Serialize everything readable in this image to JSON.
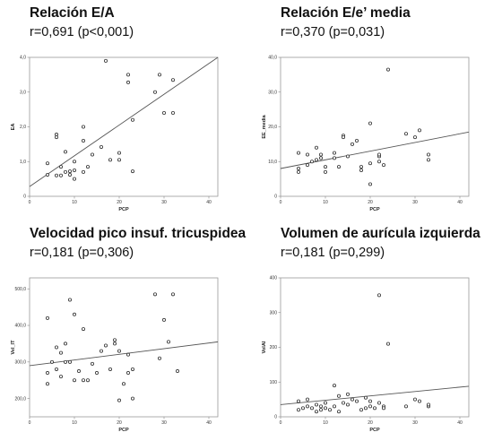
{
  "chart_data": [
    {
      "type": "scatter",
      "title": "Relación E/A",
      "subtitle": "r=0,691 (p<0,001)",
      "xlabel": "PCP",
      "ylabel": "EA",
      "xlim": [
        0,
        42
      ],
      "ylim": [
        0,
        4.0
      ],
      "xticks": [
        "0",
        "10",
        "20",
        "30",
        "40"
      ],
      "yticks": [
        "0",
        "1,0",
        "2,0",
        "3,0",
        "4,0"
      ],
      "points": [
        [
          4,
          0.95
        ],
        [
          4,
          0.62
        ],
        [
          6,
          0.6
        ],
        [
          6,
          1.7
        ],
        [
          6,
          1.78
        ],
        [
          7,
          0.85
        ],
        [
          7,
          0.6
        ],
        [
          8,
          0.7
        ],
        [
          8,
          1.28
        ],
        [
          9,
          0.72
        ],
        [
          9,
          0.62
        ],
        [
          10,
          0.5
        ],
        [
          10,
          1.0
        ],
        [
          10,
          0.75
        ],
        [
          12,
          0.7
        ],
        [
          12,
          2.0
        ],
        [
          12,
          1.6
        ],
        [
          13,
          0.85
        ],
        [
          14,
          1.2
        ],
        [
          16,
          1.42
        ],
        [
          17,
          3.9
        ],
        [
          18,
          1.05
        ],
        [
          20,
          1.05
        ],
        [
          20,
          1.25
        ],
        [
          22,
          3.5
        ],
        [
          22,
          3.28
        ],
        [
          23,
          2.2
        ],
        [
          23,
          0.72
        ],
        [
          28,
          3.0
        ],
        [
          29,
          3.5
        ],
        [
          30,
          2.4
        ],
        [
          32,
          3.35
        ],
        [
          32,
          2.4
        ]
      ],
      "fit": [
        [
          0,
          0.28
        ],
        [
          42,
          4.0
        ]
      ]
    },
    {
      "type": "scatter",
      "title": "Relación E/e’ media",
      "subtitle": "r=0,370 (p=0,031)",
      "xlabel": "PCP",
      "ylabel": "EE_media",
      "xlim": [
        0,
        42
      ],
      "ylim": [
        0,
        40
      ],
      "xticks": [
        "0",
        "10",
        "20",
        "30",
        "40"
      ],
      "yticks": [
        "0",
        "10,0",
        "20,0",
        "30,0",
        "40,0"
      ],
      "points": [
        [
          4,
          12.5
        ],
        [
          4,
          8.0
        ],
        [
          4,
          7.0
        ],
        [
          6,
          12.0
        ],
        [
          6,
          9.0
        ],
        [
          7,
          10.0
        ],
        [
          8,
          10.5
        ],
        [
          8,
          14.0
        ],
        [
          9,
          11.0
        ],
        [
          9,
          12.0
        ],
        [
          10,
          8.5
        ],
        [
          10,
          7.0
        ],
        [
          12,
          11.0
        ],
        [
          12,
          12.5
        ],
        [
          13,
          8.5
        ],
        [
          14,
          17.5
        ],
        [
          14,
          17.0
        ],
        [
          15,
          11.5
        ],
        [
          16,
          15.0
        ],
        [
          17,
          16.0
        ],
        [
          18,
          7.5
        ],
        [
          18,
          8.5
        ],
        [
          20,
          3.5
        ],
        [
          20,
          21.0
        ],
        [
          20,
          9.5
        ],
        [
          22,
          11.5
        ],
        [
          22,
          12.0
        ],
        [
          22,
          10.0
        ],
        [
          23,
          9.0
        ],
        [
          24,
          36.5
        ],
        [
          28,
          18.0
        ],
        [
          30,
          17.0
        ],
        [
          31,
          19.0
        ],
        [
          33,
          12.0
        ],
        [
          33,
          10.5
        ]
      ],
      "fit": [
        [
          0,
          8.0
        ],
        [
          42,
          18.5
        ]
      ]
    },
    {
      "type": "scatter",
      "title": "Velocidad pico insuf. tricuspidea",
      "subtitle": "r=0,181 (p=0,306)",
      "xlabel": "PCP",
      "ylabel": "Vel_IT",
      "xlim": [
        0,
        42
      ],
      "ylim": [
        150,
        530
      ],
      "xticks": [
        "0",
        "10",
        "20",
        "30",
        "40"
      ],
      "yticks": [
        "200,0",
        "300,0",
        "400,0",
        "500,0"
      ],
      "points": [
        [
          4,
          420
        ],
        [
          4,
          270
        ],
        [
          4,
          240
        ],
        [
          5,
          300
        ],
        [
          6,
          340
        ],
        [
          6,
          280
        ],
        [
          7,
          260
        ],
        [
          7,
          325
        ],
        [
          8,
          350
        ],
        [
          8,
          300
        ],
        [
          9,
          470
        ],
        [
          9,
          300
        ],
        [
          10,
          430
        ],
        [
          10,
          250
        ],
        [
          11,
          275
        ],
        [
          12,
          390
        ],
        [
          12,
          250
        ],
        [
          13,
          250
        ],
        [
          14,
          295
        ],
        [
          15,
          270
        ],
        [
          16,
          330
        ],
        [
          17,
          345
        ],
        [
          18,
          280
        ],
        [
          19,
          360
        ],
        [
          19,
          350
        ],
        [
          20,
          330
        ],
        [
          20,
          195
        ],
        [
          21,
          240
        ],
        [
          22,
          320
        ],
        [
          22,
          270
        ],
        [
          23,
          280
        ],
        [
          23,
          200
        ],
        [
          28,
          485
        ],
        [
          29,
          310
        ],
        [
          30,
          415
        ],
        [
          31,
          355
        ],
        [
          32,
          485
        ],
        [
          33,
          275
        ]
      ],
      "fit": [
        [
          0,
          290
        ],
        [
          42,
          355
        ]
      ]
    },
    {
      "type": "scatter",
      "title": "Volumen de aurícula izquierda",
      "subtitle": "r=0,181 (p=0,299)",
      "xlabel": "PCP",
      "ylabel": "VolAI",
      "xlim": [
        0,
        42
      ],
      "ylim": [
        0,
        400
      ],
      "xticks": [
        "0",
        "10",
        "20",
        "30",
        "40"
      ],
      "yticks": [
        "0",
        "100",
        "200",
        "300",
        "400"
      ],
      "points": [
        [
          4,
          45
        ],
        [
          4,
          20
        ],
        [
          5,
          25
        ],
        [
          6,
          30
        ],
        [
          6,
          50
        ],
        [
          7,
          25
        ],
        [
          8,
          35
        ],
        [
          8,
          15
        ],
        [
          9,
          30
        ],
        [
          9,
          20
        ],
        [
          10,
          25
        ],
        [
          10,
          40
        ],
        [
          11,
          20
        ],
        [
          12,
          30
        ],
        [
          12,
          90
        ],
        [
          13,
          60
        ],
        [
          13,
          15
        ],
        [
          14,
          40
        ],
        [
          15,
          65
        ],
        [
          15,
          35
        ],
        [
          16,
          50
        ],
        [
          17,
          45
        ],
        [
          18,
          20
        ],
        [
          19,
          25
        ],
        [
          19,
          55
        ],
        [
          20,
          30
        ],
        [
          20,
          45
        ],
        [
          21,
          25
        ],
        [
          22,
          350
        ],
        [
          22,
          40
        ],
        [
          23,
          30
        ],
        [
          23,
          25
        ],
        [
          24,
          210
        ],
        [
          28,
          30
        ],
        [
          30,
          50
        ],
        [
          31,
          45
        ],
        [
          33,
          30
        ],
        [
          33,
          35
        ]
      ],
      "fit": [
        [
          0,
          35
        ],
        [
          42,
          88
        ]
      ]
    }
  ]
}
